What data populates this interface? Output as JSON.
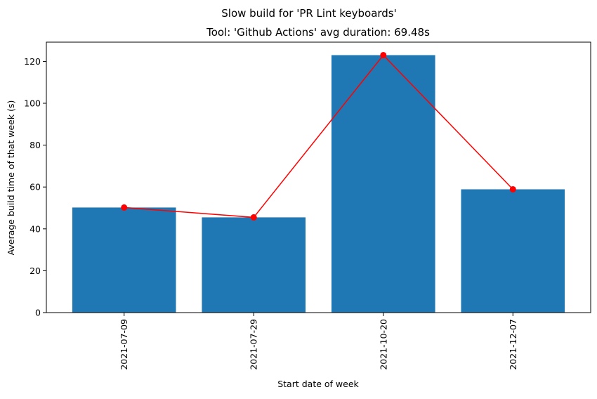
{
  "chart_data": {
    "type": "bar",
    "suptitle": "Slow build for 'PR Lint keyboards'",
    "title": "Tool: 'Github Actions' avg duration: 69.48s",
    "xlabel": "Start date of week",
    "ylabel": "Average build time of that week (s)",
    "categories": [
      "2021-07-09",
      "2021-07-29",
      "2021-10-20",
      "2021-12-07"
    ],
    "series": [
      {
        "type": "bar",
        "values": [
          50.2,
          45.5,
          123.0,
          58.9
        ],
        "color": "#1f77b4"
      },
      {
        "type": "line",
        "values": [
          50.2,
          45.5,
          123.0,
          58.9
        ],
        "color": "#ff0000",
        "marker": "circle"
      }
    ],
    "ylim": [
      0,
      129.2
    ],
    "yticks": [
      0,
      20,
      40,
      60,
      80,
      100,
      120
    ],
    "grid": false,
    "legend": "none"
  }
}
